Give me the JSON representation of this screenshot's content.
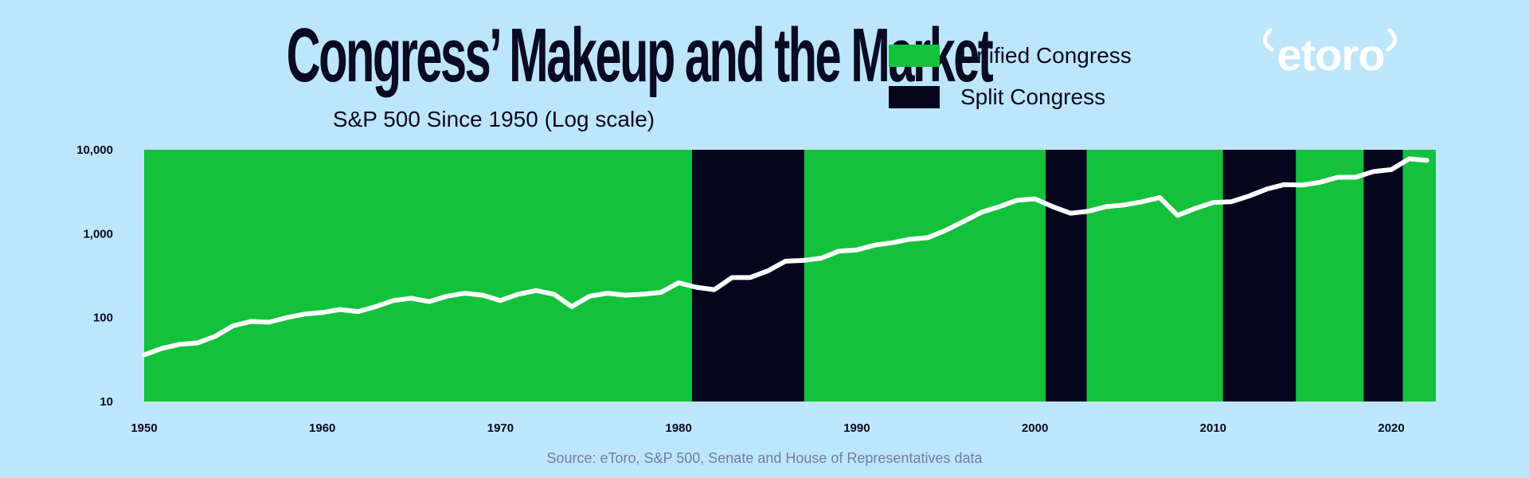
{
  "header": {
    "title": "Congress’ Makeup and the Market",
    "subtitle": "S&P 500 Since 1950 (Log scale)"
  },
  "legend": {
    "unified_label": "Unified Congress",
    "split_label": "Split Congress"
  },
  "logo": {
    "text": "etoro"
  },
  "source": "Source: eToro, S&P 500, Senate and House of Representatives data",
  "colors": {
    "background": "#bee6fa",
    "unified": "#13c13b",
    "split": "#05051e",
    "line": "#ffffff",
    "text": "#0a0a23"
  },
  "chart_data": {
    "type": "line",
    "y_scale": "log",
    "xlim": [
      1950,
      2022.5
    ],
    "ylim": [
      10,
      10000
    ],
    "x_ticks": [
      1950,
      1960,
      1970,
      1980,
      1990,
      2000,
      2010,
      2020
    ],
    "y_ticks": [
      {
        "value": 10,
        "label": "10"
      },
      {
        "value": 100,
        "label": "100"
      },
      {
        "value": 1000,
        "label": "1,000"
      },
      {
        "value": 10000,
        "label": "10,000"
      }
    ],
    "periods": [
      {
        "start": 1950,
        "end": 1980.75,
        "type": "unified"
      },
      {
        "start": 1980.75,
        "end": 1987.05,
        "type": "split"
      },
      {
        "start": 1987.05,
        "end": 2000.6,
        "type": "unified"
      },
      {
        "start": 2000.6,
        "end": 2002.9,
        "type": "split"
      },
      {
        "start": 2002.9,
        "end": 2010.55,
        "type": "unified"
      },
      {
        "start": 2010.55,
        "end": 2014.65,
        "type": "split"
      },
      {
        "start": 2014.65,
        "end": 2018.45,
        "type": "unified"
      },
      {
        "start": 2018.45,
        "end": 2020.65,
        "type": "split"
      },
      {
        "start": 2020.65,
        "end": 2022.5,
        "type": "unified"
      }
    ],
    "series": [
      {
        "x": [
          1950,
          1951,
          1952,
          1953,
          1954,
          1955,
          1956,
          1957,
          1958,
          1959,
          1960,
          1961,
          1962,
          1963,
          1964,
          1965,
          1966,
          1967,
          1968,
          1969,
          1970,
          1971,
          1972,
          1973,
          1974,
          1975,
          1976,
          1977,
          1978,
          1979,
          1980,
          1981,
          1982,
          1983,
          1984,
          1985,
          1986,
          1987,
          1988,
          1989,
          1990,
          1991,
          1992,
          1993,
          1994,
          1995,
          1996,
          1997,
          1998,
          1999,
          2000,
          2001,
          2002,
          2003,
          2004,
          2005,
          2006,
          2007,
          2008,
          2009,
          2010,
          2011,
          2012,
          2013,
          2014,
          2015,
          2016,
          2017,
          2018,
          2019,
          2020,
          2021,
          2022
        ],
        "values": [
          36,
          43,
          48,
          50,
          60,
          80,
          90,
          88,
          100,
          110,
          115,
          125,
          118,
          135,
          160,
          170,
          155,
          180,
          195,
          185,
          160,
          190,
          210,
          190,
          135,
          180,
          195,
          185,
          190,
          200,
          260,
          230,
          215,
          300,
          300,
          360,
          470,
          480,
          510,
          620,
          640,
          730,
          780,
          860,
          900,
          1100,
          1400,
          1800,
          2100,
          2500,
          2600,
          2100,
          1750,
          1850,
          2100,
          2200,
          2400,
          2700,
          1650,
          2000,
          2350,
          2400,
          2800,
          3400,
          3850,
          3800,
          4100,
          4700,
          4700,
          5500,
          5800,
          7800,
          7500
        ]
      }
    ]
  }
}
